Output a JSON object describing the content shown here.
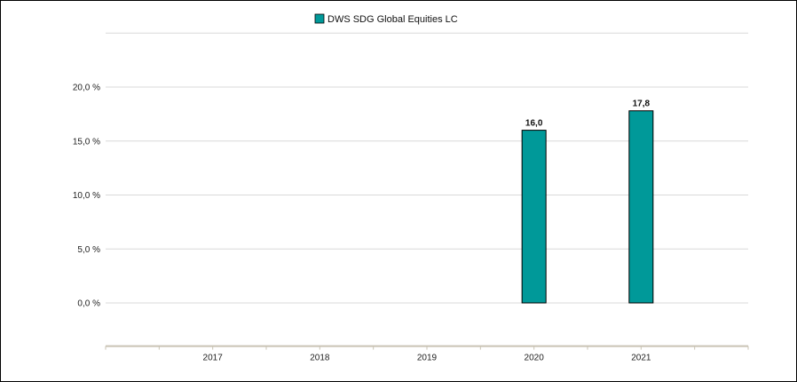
{
  "chart_data": {
    "type": "bar",
    "categories": [
      "2017",
      "2018",
      "2019",
      "2020",
      "2021"
    ],
    "series": [
      {
        "name": "DWS SDG Global Equities  LC",
        "values": [
          null,
          null,
          null,
          16.0,
          17.8
        ],
        "labels": [
          "",
          "",
          "",
          "16,0",
          "17,8"
        ],
        "color": "#009999"
      }
    ],
    "ylim": [
      -4.0,
      25.0
    ],
    "yticks": [
      0,
      5,
      10,
      15,
      20
    ],
    "ytick_labels": [
      "0,0 %",
      "5,0 %",
      "10,0 %",
      "15,0 %",
      "20,0 %"
    ],
    "legend": "top-center",
    "grid": true,
    "title": "",
    "xlabel": "",
    "ylabel": ""
  }
}
